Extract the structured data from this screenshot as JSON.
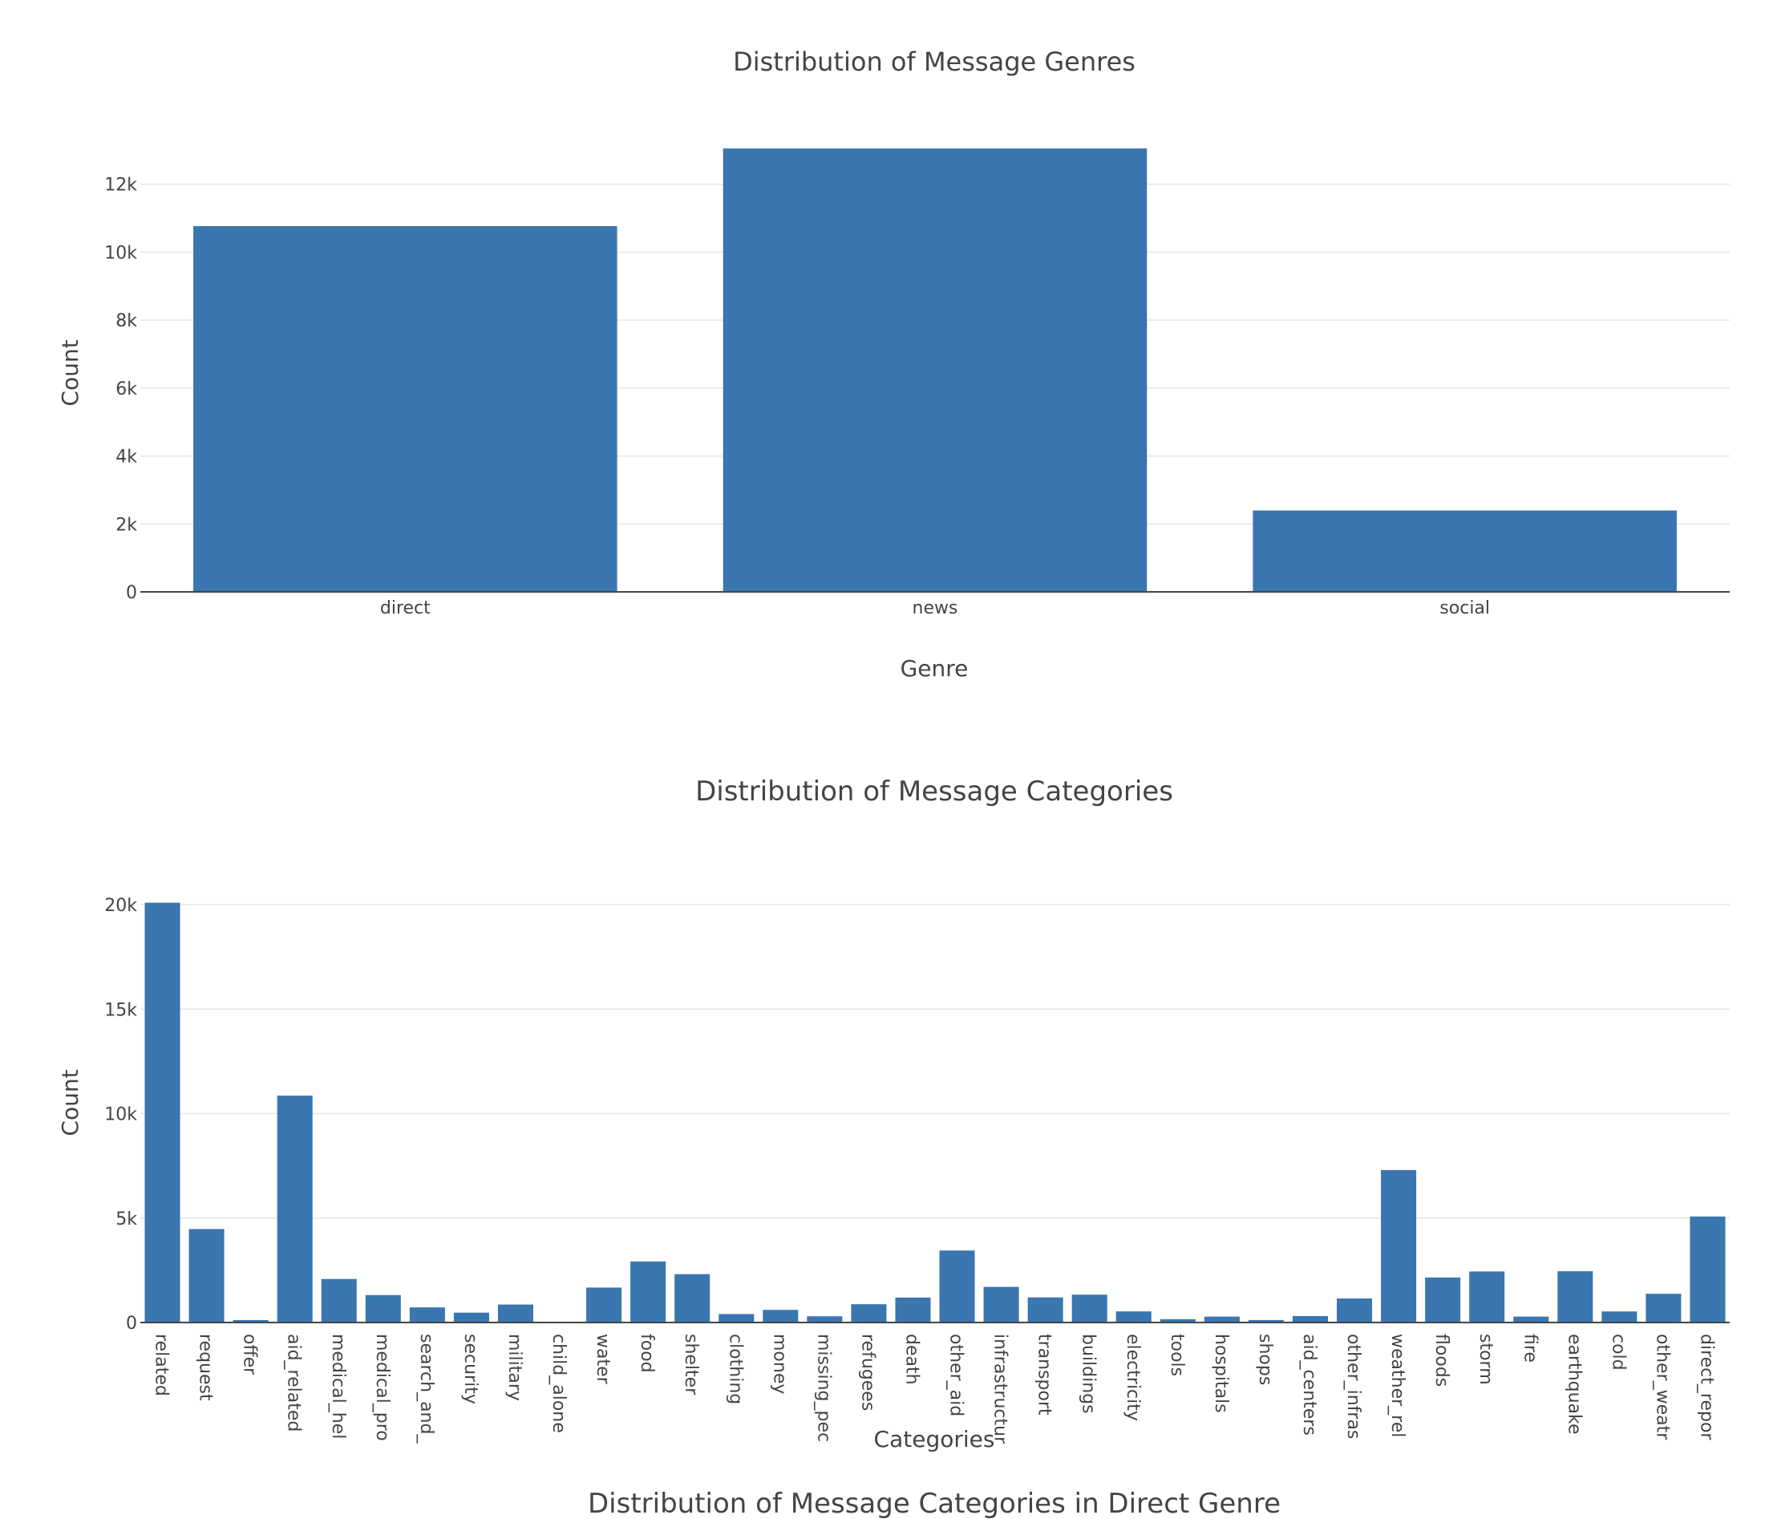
{
  "chart_data": [
    {
      "type": "bar",
      "title": "Distribution of Message Genres",
      "xlabel": "Genre",
      "ylabel": "Count",
      "categories": [
        "direct",
        "news",
        "social"
      ],
      "values": [
        10766,
        13054,
        2396
      ],
      "ylim": [
        0,
        13741
      ],
      "yticks": [
        0,
        2000,
        4000,
        6000,
        8000,
        10000,
        12000
      ],
      "ytick_labels": [
        "0",
        "2k",
        "4k",
        "6k",
        "8k",
        "10k",
        "12k"
      ],
      "color": "#3a76af",
      "grid": true,
      "legend": "none"
    },
    {
      "type": "bar",
      "title": "Distribution of Message Categories",
      "xlabel": "Categories",
      "ylabel": "Count",
      "categories": [
        "related",
        "request",
        "offer",
        "aid_related",
        "medical_hel",
        "medical_pro",
        "search_and_",
        "security",
        "military",
        "child_alone",
        "water",
        "food",
        "shelter",
        "clothing",
        "money",
        "missing_pec",
        "refugees",
        "death",
        "other_aid",
        "infrastructur",
        "transport",
        "buildings",
        "electricity",
        "tools",
        "hospitals",
        "shops",
        "aid_centers",
        "other_infras",
        "weather_rel",
        "floods",
        "storm",
        "fire",
        "earthquake",
        "cold",
        "other_weatr",
        "direct_repor"
      ],
      "values": [
        20094,
        4474,
        118,
        10860,
        2084,
        1313,
        724,
        471,
        860,
        0,
        1672,
        2923,
        2314,
        405,
        604,
        298,
        875,
        1194,
        3446,
        1705,
        1201,
        1333,
        532,
        159,
        283,
        120,
        309,
        1151,
        7297,
        2155,
        2443,
        282,
        2455,
        530,
        1376,
        5075
      ],
      "ylim": [
        0,
        21153
      ],
      "yticks": [
        0,
        5000,
        10000,
        15000,
        20000
      ],
      "ytick_labels": [
        "0",
        "5k",
        "10k",
        "15k",
        "20k"
      ],
      "color": "#3a76af",
      "grid": true,
      "legend": "none"
    },
    {
      "type": "bar",
      "title": "Distribution of Message Categories in Direct Genre"
    }
  ]
}
